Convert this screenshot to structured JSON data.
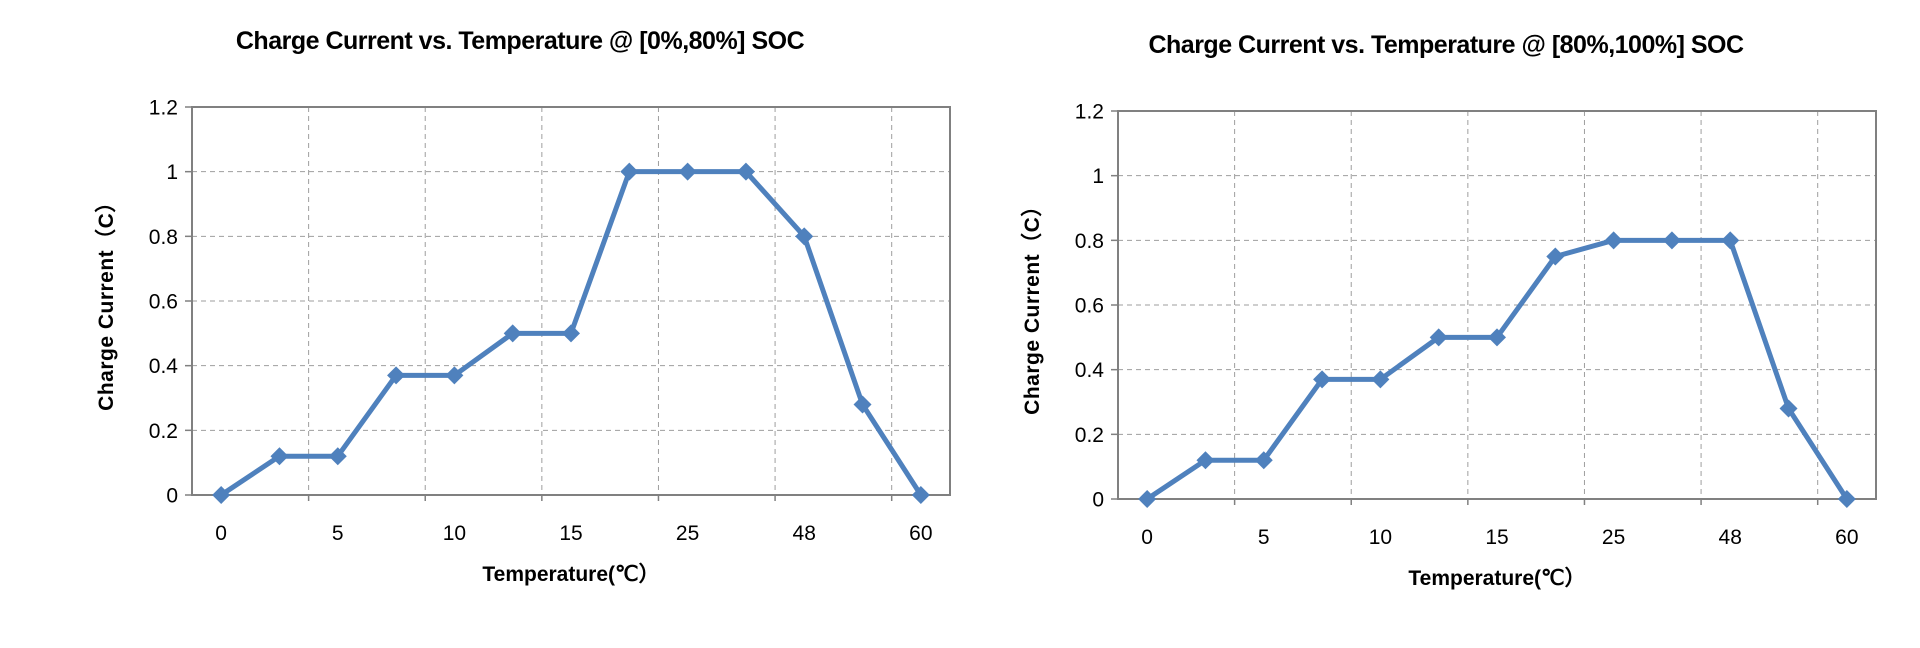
{
  "page": {
    "background": "#ffffff"
  },
  "style": {
    "line_color": "#4F81BD",
    "grid_color": "#9e9e9e",
    "border_color": "#808080",
    "text_color": "#000000"
  },
  "chart_data": [
    {
      "type": "line",
      "title": "Charge Current vs. Temperature @ [0%,80%] SOC",
      "xlabel": "Temperature(℃）",
      "ylabel": "Charge Current（C）",
      "categories": [
        "0",
        "",
        "5",
        "",
        "10",
        "",
        "15",
        "",
        "25",
        "",
        "48",
        "",
        "60"
      ],
      "x_tick_labels": [
        "0",
        "5",
        "10",
        "15",
        "25",
        "48",
        "60"
      ],
      "values": [
        0,
        0.12,
        0.12,
        0.37,
        0.37,
        0.5,
        0.5,
        1,
        1,
        1,
        0.8,
        0.28,
        0
      ],
      "ylim": [
        0,
        1.2
      ],
      "yticks": [
        0,
        0.2,
        0.4,
        0.6,
        0.8,
        1,
        1.2
      ],
      "ytick_labels": [
        "0",
        "0.2",
        "0.4",
        "0.6",
        "0.8",
        "1",
        "1.2"
      ],
      "grid": true,
      "legend": "none",
      "marker": "diamond"
    },
    {
      "type": "line",
      "title": "Charge Current vs. Temperature @ [80%,100%] SOC",
      "xlabel": "Temperature(℃）",
      "ylabel": "Charge Current（C）",
      "categories": [
        "0",
        "",
        "5",
        "",
        "10",
        "",
        "15",
        "",
        "25",
        "",
        "48",
        "",
        "60"
      ],
      "x_tick_labels": [
        "0",
        "5",
        "10",
        "15",
        "25",
        "48",
        "60"
      ],
      "values": [
        0,
        0.12,
        0.12,
        0.37,
        0.37,
        0.5,
        0.5,
        0.75,
        0.8,
        0.8,
        0.8,
        0.28,
        0
      ],
      "ylim": [
        0,
        1.2
      ],
      "yticks": [
        0,
        0.2,
        0.4,
        0.6,
        0.8,
        1,
        1.2
      ],
      "ytick_labels": [
        "0",
        "0.2",
        "0.4",
        "0.6",
        "0.8",
        "1",
        "1.2"
      ],
      "grid": true,
      "legend": "none",
      "marker": "diamond"
    }
  ]
}
